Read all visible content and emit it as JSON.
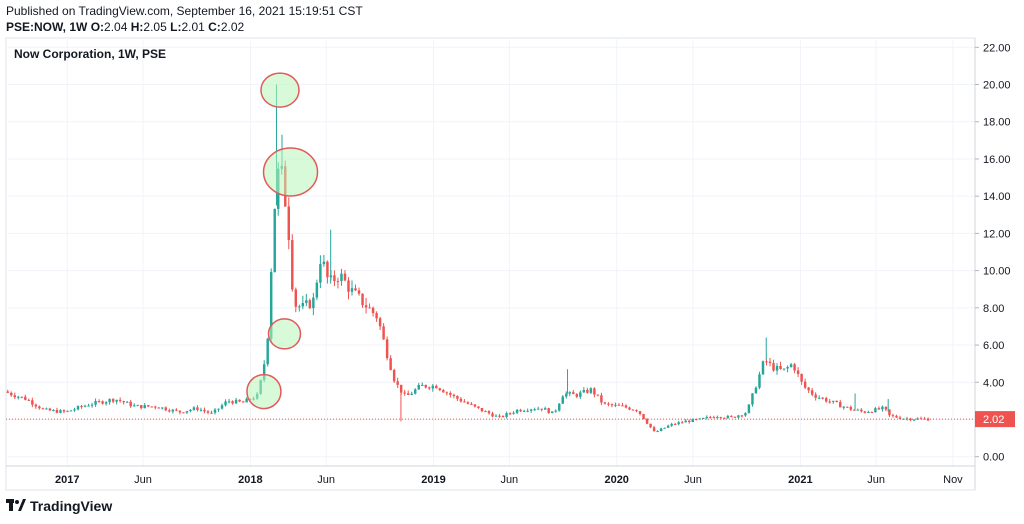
{
  "header": {
    "published": "Published on TradingView.com, September 16, 2021 15:19:51 CST",
    "symbol_tf": "PSE:NOW, 1W",
    "o_label": "O:",
    "o_value": "2.04",
    "h_label": "H:",
    "h_value": "2.05",
    "l_label": "L:",
    "l_value": "2.01",
    "c_label": "C:",
    "c_value": "2.02"
  },
  "brand": {
    "name": "TradingView"
  },
  "colors": {
    "up": "#26a69a",
    "down": "#ef5350",
    "grid": "#f0f3fa",
    "price_line": "#ef5350",
    "highlight_fill": "#b8f5b8",
    "highlight_stroke": "#e05a5a"
  },
  "chart_data": {
    "type": "candlestick",
    "title": "Now Corporation, 1W, PSE",
    "interval": "1W",
    "y_axis": {
      "ticks": [
        "22.00",
        "20.00",
        "18.00",
        "16.00",
        "14.00",
        "12.00",
        "10.00",
        "8.00",
        "6.00",
        "4.00",
        "2.00",
        "0.00"
      ],
      "ylim": [
        -0.5,
        22.5
      ],
      "position": "right"
    },
    "x_axis": {
      "ticks": [
        {
          "label": "2017",
          "date": "2017-01-01"
        },
        {
          "label": "Jun",
          "date": "2017-06-01"
        },
        {
          "label": "2018",
          "date": "2018-01-01"
        },
        {
          "label": "Jun",
          "date": "2018-06-01"
        },
        {
          "label": "2019",
          "date": "2019-01-01"
        },
        {
          "label": "Jun",
          "date": "2019-06-01"
        },
        {
          "label": "2020",
          "date": "2020-01-01"
        },
        {
          "label": "Jun",
          "date": "2020-06-01"
        },
        {
          "label": "2021",
          "date": "2021-01-01"
        },
        {
          "label": "Jun",
          "date": "2021-06-01"
        },
        {
          "label": "Nov",
          "date": "2021-11-01"
        }
      ],
      "range": [
        "2016-09-01",
        "2021-12-15"
      ]
    },
    "last_price": "2.02",
    "price_points": [
      [
        "2016-09-01",
        3.5
      ],
      [
        "2016-10-15",
        3.1
      ],
      [
        "2016-11-20",
        2.5
      ],
      [
        "2017-01-01",
        2.4
      ],
      [
        "2017-02-15",
        2.8
      ],
      [
        "2017-04-10",
        3.1
      ],
      [
        "2017-05-20",
        2.7
      ],
      [
        "2017-07-01",
        2.7
      ],
      [
        "2017-08-15",
        2.4
      ],
      [
        "2017-09-20",
        2.6
      ],
      [
        "2017-10-20",
        2.3
      ],
      [
        "2017-11-20",
        3.0
      ],
      [
        "2017-12-20",
        2.9
      ],
      [
        "2018-01-20",
        3.3
      ],
      [
        "2018-02-01",
        5.0
      ],
      [
        "2018-02-10",
        7.0
      ],
      [
        "2018-02-18",
        12.0
      ],
      [
        "2018-02-26",
        15.0
      ],
      [
        "2018-03-06",
        15.5
      ],
      [
        "2018-03-14",
        14.0
      ],
      [
        "2018-03-22",
        12.0
      ],
      [
        "2018-04-01",
        8.2
      ],
      [
        "2018-04-20",
        8.0
      ],
      [
        "2018-05-10",
        8.4
      ],
      [
        "2018-05-25",
        10.8
      ],
      [
        "2018-06-10",
        9.3
      ],
      [
        "2018-07-01",
        9.8
      ],
      [
        "2018-07-25",
        8.9
      ],
      [
        "2018-08-20",
        8.2
      ],
      [
        "2018-09-15",
        7.5
      ],
      [
        "2018-10-01",
        5.8
      ],
      [
        "2018-10-20",
        4.0
      ],
      [
        "2018-11-10",
        3.2
      ],
      [
        "2018-12-10",
        3.8
      ],
      [
        "2019-01-10",
        3.8
      ],
      [
        "2019-02-15",
        3.2
      ],
      [
        "2019-04-01",
        2.6
      ],
      [
        "2019-05-15",
        2.1
      ],
      [
        "2019-06-20",
        2.5
      ],
      [
        "2019-07-20",
        2.6
      ],
      [
        "2019-08-10",
        2.6
      ],
      [
        "2019-09-01",
        2.3
      ],
      [
        "2019-09-20",
        3.4
      ],
      [
        "2019-10-15",
        3.3
      ],
      [
        "2019-11-15",
        3.6
      ],
      [
        "2019-12-10",
        2.8
      ],
      [
        "2020-01-15",
        2.7
      ],
      [
        "2020-02-15",
        2.5
      ],
      [
        "2020-03-20",
        1.3
      ],
      [
        "2020-04-20",
        1.7
      ],
      [
        "2020-05-20",
        1.9
      ],
      [
        "2020-06-20",
        2.0
      ],
      [
        "2020-07-20",
        2.2
      ],
      [
        "2020-08-20",
        2.1
      ],
      [
        "2020-09-20",
        2.4
      ],
      [
        "2020-10-10",
        4.0
      ],
      [
        "2020-10-25",
        5.2
      ],
      [
        "2020-11-10",
        4.8
      ],
      [
        "2020-12-01",
        4.6
      ],
      [
        "2020-12-20",
        5.0
      ],
      [
        "2021-01-10",
        3.8
      ],
      [
        "2021-02-01",
        3.3
      ],
      [
        "2021-03-01",
        3.0
      ],
      [
        "2021-04-10",
        2.6
      ],
      [
        "2021-05-10",
        2.4
      ],
      [
        "2021-06-20",
        2.6
      ],
      [
        "2021-07-01",
        2.2
      ],
      [
        "2021-08-01",
        2.05
      ],
      [
        "2021-09-15",
        2.02
      ]
    ],
    "spikes": [
      {
        "date": "2018-02-22",
        "high": 20.0
      },
      {
        "date": "2018-03-05",
        "high": 17.3
      },
      {
        "date": "2018-06-10",
        "high": 12.2
      },
      {
        "date": "2018-10-28",
        "low": 1.9
      },
      {
        "date": "2019-09-25",
        "high": 4.7
      },
      {
        "date": "2020-10-25",
        "high": 6.4
      },
      {
        "date": "2021-04-20",
        "high": 3.4
      },
      {
        "date": "2021-06-25",
        "high": 3.1
      }
    ],
    "highlights": [
      {
        "date": "2018-03-01",
        "price": 19.7
      },
      {
        "date": "2018-03-22",
        "price": 15.3
      },
      {
        "date": "2018-03-10",
        "price": 6.6
      },
      {
        "date": "2018-01-28",
        "price": 3.5
      }
    ],
    "grid": true
  }
}
